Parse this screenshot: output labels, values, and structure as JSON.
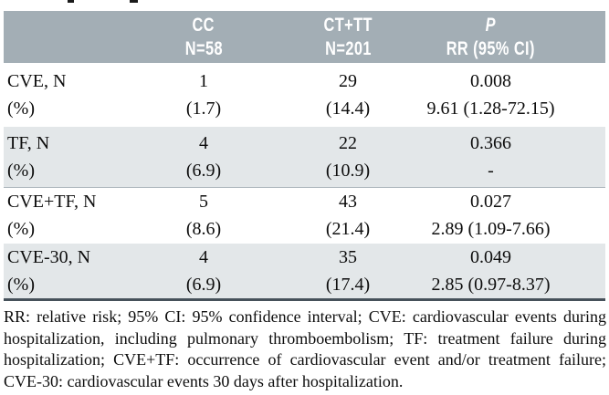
{
  "table": {
    "header": {
      "columns": [
        {
          "line1": "CC",
          "line2": "N=58"
        },
        {
          "line1": "CT+TT",
          "line2": "N=201"
        },
        {
          "line1": "P",
          "line2": "RR (95% CI)"
        }
      ]
    },
    "rows": [
      {
        "label": "CVE, N",
        "label2": "(%)",
        "cc_n": "1",
        "cc_pct": "(1.7)",
        "cttt_n": "29",
        "cttt_pct": "(14.4)",
        "p": "0.008",
        "rr": "9.61 (1.28-72.15)"
      },
      {
        "label": "TF, N",
        "label2": "(%)",
        "cc_n": "4",
        "cc_pct": "(6.9)",
        "cttt_n": "22",
        "cttt_pct": "(10.9)",
        "p": "0.366",
        "rr": "-"
      },
      {
        "label": "CVE+TF, N",
        "label2": "(%)",
        "cc_n": "5",
        "cc_pct": "(8.6)",
        "cttt_n": "43",
        "cttt_pct": "(21.4)",
        "p": "0.027",
        "rr": "2.89 (1.09-7.66)"
      },
      {
        "label": "CVE-30, N",
        "label2": "(%)",
        "cc_n": "4",
        "cc_pct": "(6.9)",
        "cttt_n": "35",
        "cttt_pct": "(17.4)",
        "p": "0.049",
        "rr": "2.85 (0.97-8.37)"
      }
    ]
  },
  "footnote_lines": [
    "RR: relative risk; 95% CI: 95% confidence interval; CVE: cardiovascular events during",
    "hospitalization, including pulmonary thromboembolism; TF: treatment failure during",
    "hospitalization; CVE+TF: occurrence of cardiovascular event and/or treatment failure;",
    "CVE-30: cardiovascular events 30 days after hospitalization."
  ],
  "colors": {
    "header_bg": "#a3aeb5",
    "header_text": "#ffffff",
    "shaded_row_bg": "#e3e7e9",
    "table_bottom_border": "#46515a",
    "body_text": "#0d0d0d"
  }
}
